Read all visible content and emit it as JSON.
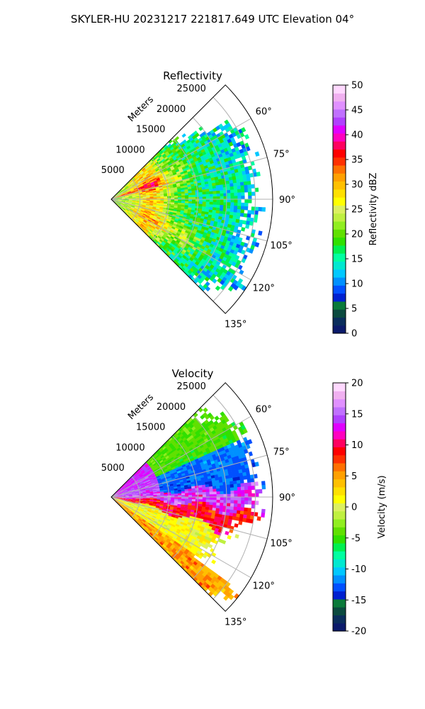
{
  "figure": {
    "suptitle": "SKYLER-HU  20231217  221817.649 UTC Elevation 04°"
  },
  "chart_data": [
    {
      "type": "heatmap",
      "subtype": "polar-sector-ppi",
      "title": "Reflectivity",
      "range_axis_label": "Meters",
      "range_ticks": [
        "5000",
        "10000",
        "15000",
        "20000",
        "25000"
      ],
      "range_max": 28000,
      "azimuth_ticks": [
        "60°",
        "75°",
        "90°",
        "105°",
        "120°",
        "135°"
      ],
      "azimuth_range": [
        45,
        135
      ],
      "grid": true,
      "colorbar": {
        "label": "Reflectivity dBZ",
        "ticks": [
          "0",
          "5",
          "10",
          "15",
          "20",
          "25",
          "30",
          "35",
          "40",
          "45",
          "50"
        ],
        "range": [
          0,
          50
        ],
        "colors": [
          "#0b1a6b",
          "#0a2d5c",
          "#0b4a3f",
          "#0a7a3a",
          "#0020d0",
          "#0050ff",
          "#0090ff",
          "#00c8ff",
          "#00e8d0",
          "#00ffa0",
          "#00f050",
          "#30e000",
          "#60e000",
          "#90ee20",
          "#bff040",
          "#dcf060",
          "#ffff00",
          "#ffe000",
          "#ffc000",
          "#ffa000",
          "#ff7000",
          "#ff3000",
          "#ff0000",
          "#ff0060",
          "#ff00c0",
          "#e000ff",
          "#b040ff",
          "#c070ff",
          "#e090ff",
          "#f0b0f0",
          "#ffd8ff"
        ]
      }
    },
    {
      "type": "heatmap",
      "subtype": "polar-sector-ppi",
      "title": "Velocity",
      "range_axis_label": "Meters",
      "range_ticks": [
        "5000",
        "10000",
        "15000",
        "20000",
        "25000"
      ],
      "range_max": 28000,
      "azimuth_ticks": [
        "60°",
        "75°",
        "90°",
        "105°",
        "120°",
        "135°"
      ],
      "azimuth_range": [
        45,
        135
      ],
      "grid": true,
      "colorbar": {
        "label": "Velocity (m/s)",
        "ticks": [
          "-20",
          "-15",
          "-10",
          "-5",
          "0",
          "5",
          "10",
          "15",
          "20"
        ],
        "range": [
          -20,
          20
        ],
        "colors": [
          "#0b1a6b",
          "#0a2d5c",
          "#0b4a3f",
          "#0a7a3a",
          "#0020d0",
          "#0050ff",
          "#0090ff",
          "#00c8ff",
          "#00e8d0",
          "#00ffa0",
          "#00f050",
          "#30e000",
          "#60e000",
          "#90ee20",
          "#bff040",
          "#dcf060",
          "#ffff00",
          "#ffe000",
          "#ffc000",
          "#ffa000",
          "#ff7000",
          "#ff3000",
          "#ff0000",
          "#ff0060",
          "#ff00c0",
          "#e000ff",
          "#b040ff",
          "#c070ff",
          "#e090ff",
          "#f0b0f0",
          "#ffd8ff"
        ]
      }
    }
  ]
}
